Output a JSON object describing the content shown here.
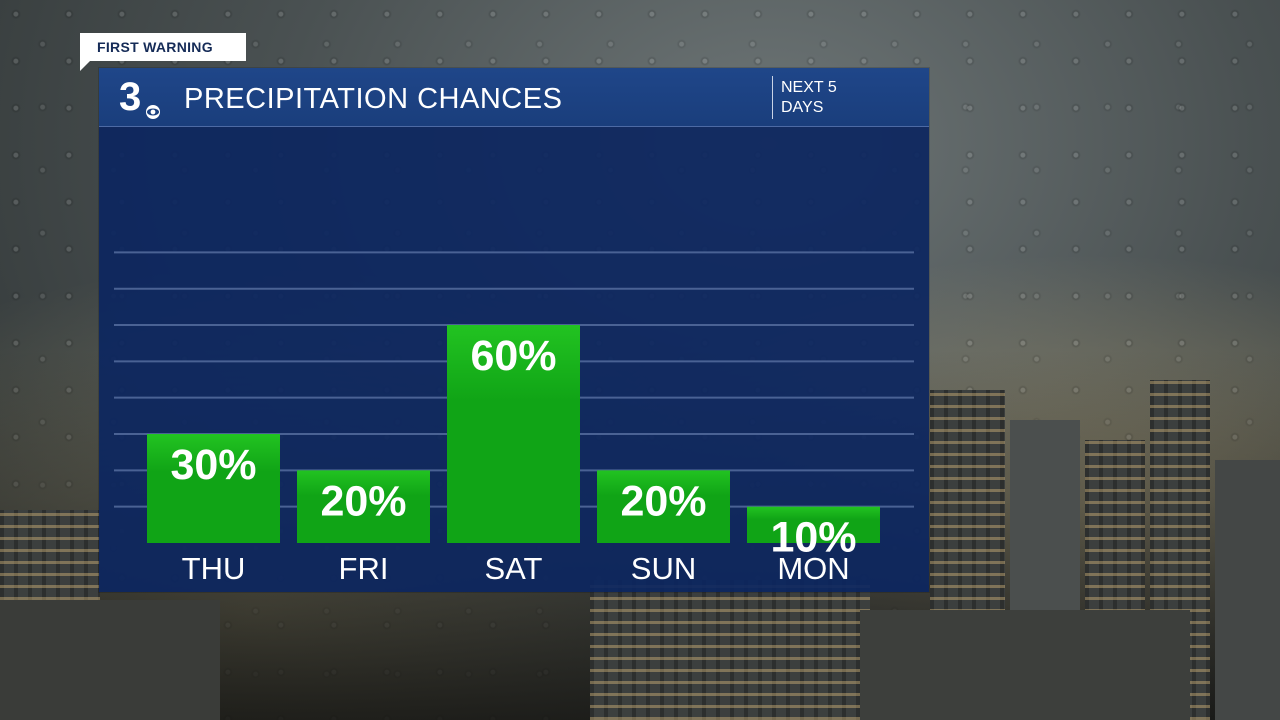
{
  "tag": "FIRST WARNING",
  "header": {
    "logo": "3",
    "title": "PRECIPITATION CHANCES",
    "subtitle": "NEXT 5 DAYS"
  },
  "colors": {
    "bar": "#10a416",
    "bar_top": "#22c321",
    "panel": "#0c2660",
    "header": "#1c4180",
    "grid": "#4a6294"
  },
  "chart_data": {
    "type": "bar",
    "title": "PRECIPITATION CHANCES",
    "subtitle": "NEXT 5 DAYS",
    "categories": [
      "THU",
      "FRI",
      "SAT",
      "SUN",
      "MON"
    ],
    "values": [
      30,
      20,
      60,
      20,
      10
    ],
    "labels": [
      "30%",
      "20%",
      "60%",
      "20%",
      "10%"
    ],
    "unit": "%",
    "ylim": [
      0,
      100
    ],
    "gridlines": [
      10,
      20,
      30,
      40,
      50,
      60,
      70,
      80
    ],
    "grid": true,
    "legend": "none"
  }
}
